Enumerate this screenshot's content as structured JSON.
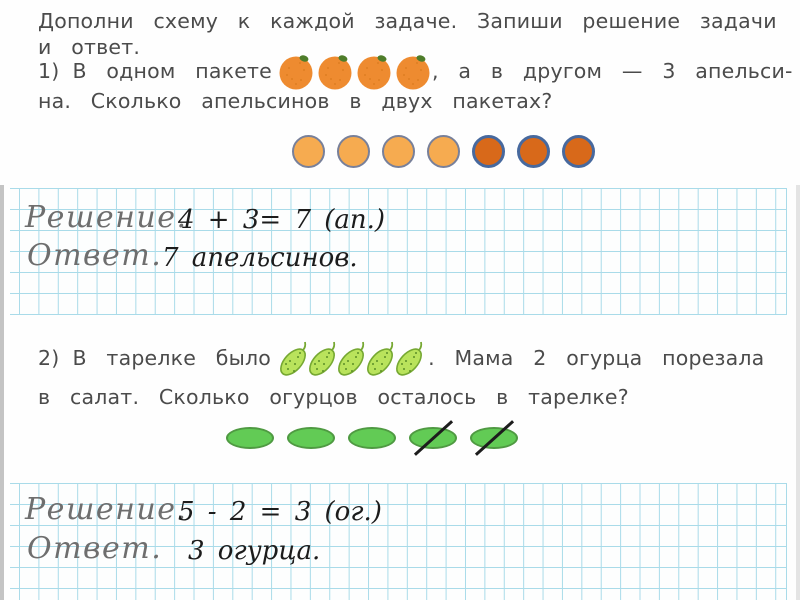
{
  "page": {
    "instruction_line1": "Дополни схему к каждой задаче. Запиши решение задачи",
    "instruction_line2": "и ответ."
  },
  "task1": {
    "number": "1)",
    "text_before_images": "В одном пакете",
    "inline_oranges": 4,
    "text_after_images": ", а в другом — 3 апельси-",
    "line2": "на. Сколько апельсинов в двух пакетах?",
    "scheme": {
      "light_count": 4,
      "dark_count": 3
    },
    "solution_label": "Решение.",
    "solution_text": "4 +  3= 7 (ап.)",
    "answer_label": "Ответ.",
    "answer_text": "7 апельсинов."
  },
  "task2": {
    "number": "2)",
    "text_before_images": "В тарелке было",
    "inline_cucumbers": 5,
    "text_after_images": ". Мама 2 огурца порезала",
    "line2": "в салат. Сколько огурцов осталось в тарелке?",
    "scheme": {
      "total": 5,
      "crossed": 2
    },
    "solution_label": "Решение.",
    "solution_text": "5 - 2 = 3 (ог.)",
    "answer_label": "Ответ.",
    "answer_text": "3 огурца."
  },
  "colors": {
    "text": "#4b4b4b",
    "grid_line": "#a9dbe9",
    "script_gray": "#6e6e6e",
    "ink": "#1c1c1c",
    "orange_fruit": "#ee8b30",
    "orange_speckle": "#d97a1e",
    "leaf_green": "#4e7d2a",
    "circle_light_fill": "#f6ab50",
    "circle_light_border": "#78809a",
    "circle_dark_fill": "#d8691a",
    "circle_dark_border": "#47699e",
    "cucumber_fill": "#b9e35c",
    "cucumber_border": "#76a832",
    "cucumber_dot": "#5c8f28",
    "oval_fill": "#62cb55",
    "oval_border": "#4f9a42",
    "strike": "#1d1d1d"
  }
}
